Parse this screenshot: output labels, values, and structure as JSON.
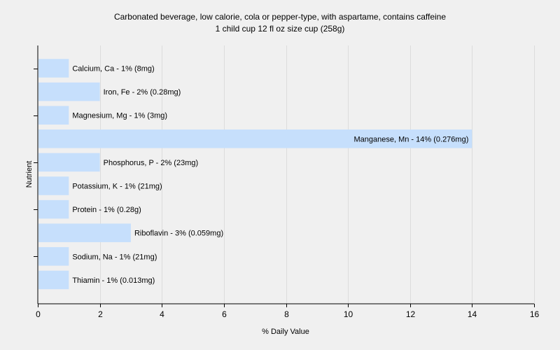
{
  "chart_data": {
    "type": "bar",
    "orientation": "horizontal",
    "title": "Carbonated beverage, low calorie, cola or pepper-type, with aspartame, contains caffeine",
    "subtitle": "1 child cup 12 fl oz size cup (258g)",
    "xlabel": "% Daily Value",
    "ylabel": "Nutrient",
    "xlim": [
      0,
      16
    ],
    "xticks": [
      0,
      2,
      4,
      6,
      8,
      10,
      12,
      14,
      16
    ],
    "grid": true,
    "bar_color": "#c6dffc",
    "background": "#f0f0f0",
    "categories": [
      "Calcium, Ca",
      "Iron, Fe",
      "Magnesium, Mg",
      "Manganese, Mn",
      "Phosphorus, P",
      "Potassium, K",
      "Protein",
      "Riboflavin",
      "Sodium, Na",
      "Thiamin"
    ],
    "values": [
      1,
      2,
      1,
      14,
      2,
      1,
      1,
      3,
      1,
      1
    ],
    "labels": [
      "Calcium, Ca - 1% (8mg)",
      "Iron, Fe - 2% (0.28mg)",
      "Magnesium, Mg - 1% (3mg)",
      "Manganese, Mn - 14% (0.276mg)",
      "Phosphorus, P - 2% (23mg)",
      "Potassium, K - 1% (21mg)",
      "Protein - 1% (0.28g)",
      "Riboflavin - 3% (0.059mg)",
      "Sodium, Na - 1% (21mg)",
      "Thiamin - 1% (0.013mg)"
    ]
  }
}
